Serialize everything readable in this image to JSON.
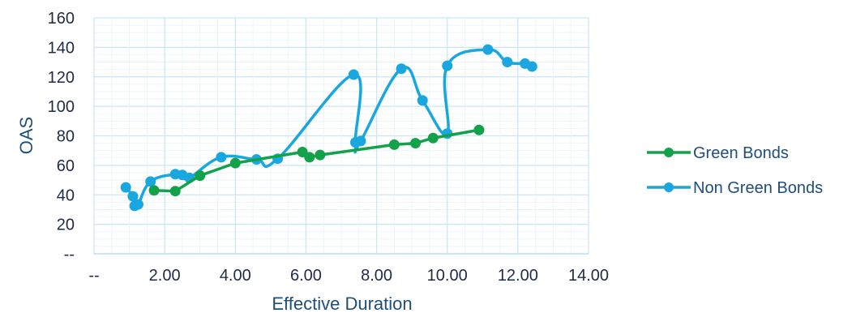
{
  "chart_data": {
    "type": "line",
    "xlabel": "Effective Duration",
    "ylabel": "OAS",
    "xlim": [
      0,
      14
    ],
    "ylim": [
      0,
      160
    ],
    "x_ticks": [
      0,
      2,
      4,
      6,
      8,
      10,
      12,
      14
    ],
    "x_tick_labels": [
      "--",
      "2.00",
      "4.00",
      "6.00",
      "8.00",
      "10.00",
      "12.00",
      "14.00"
    ],
    "y_ticks": [
      0,
      20,
      40,
      60,
      80,
      100,
      120,
      140,
      160
    ],
    "y_tick_labels": [
      "--",
      "20",
      "40",
      "60",
      "80",
      "100",
      "120",
      "140",
      "160"
    ],
    "grid": true,
    "legend_position": "right",
    "series": [
      {
        "name": "Green Bonds",
        "color": "#13a24a",
        "smooth": false,
        "points": [
          [
            1.7,
            43
          ],
          [
            2.3,
            42.5
          ],
          [
            3.0,
            53
          ],
          [
            4.0,
            61.5
          ],
          [
            5.9,
            69
          ],
          [
            6.1,
            65.5
          ],
          [
            6.4,
            67
          ],
          [
            8.5,
            74
          ],
          [
            9.1,
            75
          ],
          [
            9.6,
            78.5
          ],
          [
            10.9,
            84
          ]
        ]
      },
      {
        "name": "Non Green Bonds",
        "color": "#1aa7e0",
        "smooth": true,
        "points": [
          [
            0.9,
            45
          ],
          [
            1.1,
            39
          ],
          [
            1.15,
            32.5
          ],
          [
            1.25,
            33.5
          ],
          [
            1.6,
            49
          ],
          [
            2.3,
            54
          ],
          [
            2.5,
            53.5
          ],
          [
            2.7,
            51.5
          ],
          [
            3.6,
            65.5
          ],
          [
            4.6,
            64
          ],
          [
            5.2,
            64.5
          ],
          [
            7.35,
            121.5
          ],
          [
            7.4,
            75.5
          ],
          [
            7.55,
            76.5
          ],
          [
            8.7,
            125.5
          ],
          [
            9.3,
            104
          ],
          [
            10.0,
            81.5
          ],
          [
            10.0,
            127.5
          ],
          [
            11.15,
            138.5
          ],
          [
            11.7,
            130
          ],
          [
            12.2,
            129
          ],
          [
            12.4,
            127
          ]
        ]
      }
    ]
  }
}
